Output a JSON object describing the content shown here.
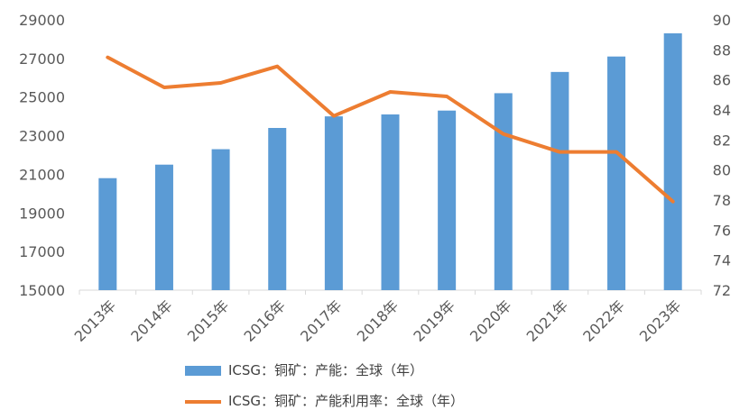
{
  "chart_data": {
    "type": "bar+line",
    "categories": [
      "2013年",
      "2014年",
      "2015年",
      "2016年",
      "2017年",
      "2018年",
      "2019年",
      "2020年",
      "2021年",
      "2022年",
      "2023年"
    ],
    "series": [
      {
        "name": "ICSG：铜矿：产能：全球（年）",
        "type": "bar",
        "axis": "left",
        "color": "#5B9BD5",
        "values": [
          20800,
          21500,
          22300,
          23400,
          24000,
          24100,
          24300,
          25200,
          26300,
          27100,
          28300
        ]
      },
      {
        "name": "ICSG：铜矿：产能利用率：全球（年）",
        "type": "line",
        "axis": "right",
        "color": "#ED7D31",
        "values": [
          87.5,
          85.5,
          85.8,
          86.9,
          83.6,
          85.2,
          84.9,
          82.4,
          81.2,
          81.2,
          77.9
        ]
      }
    ],
    "y_left": {
      "min": 15000,
      "max": 29000,
      "ticks": [
        "15000",
        "17000",
        "19000",
        "21000",
        "23000",
        "25000",
        "27000",
        "29000"
      ]
    },
    "y_right": {
      "min": 72,
      "max": 90,
      "ticks": [
        "72",
        "74",
        "76",
        "78",
        "80",
        "82",
        "84",
        "86",
        "88",
        "90"
      ]
    },
    "grid": false,
    "legend_position": "bottom"
  }
}
